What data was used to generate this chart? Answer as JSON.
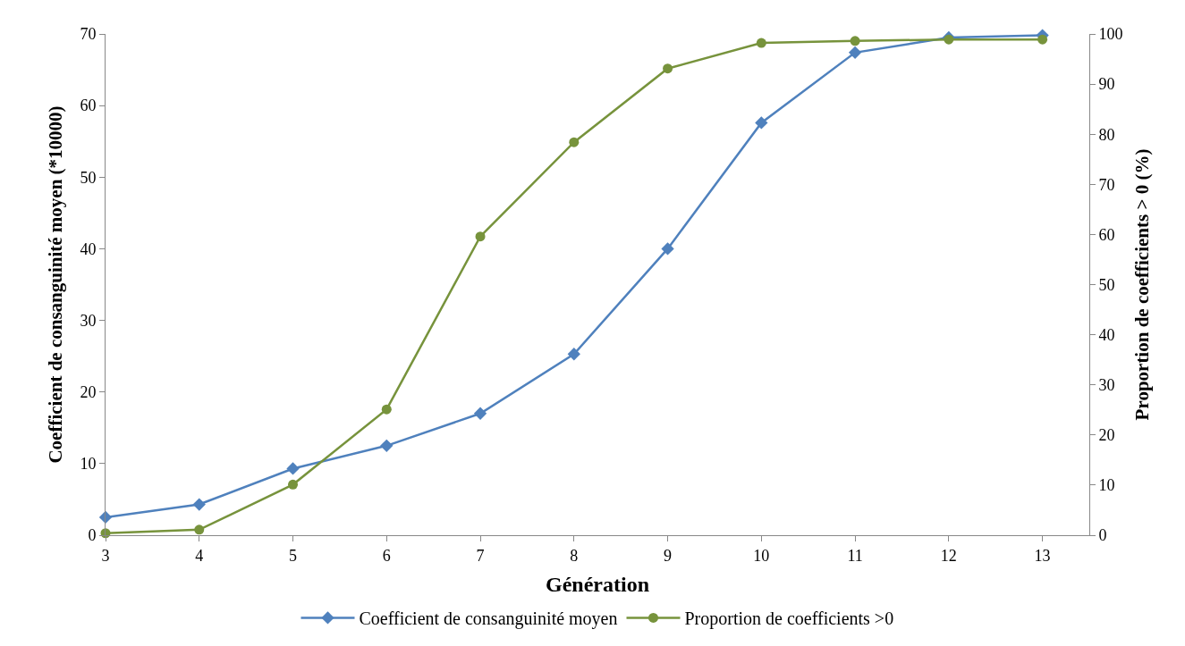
{
  "chart_data": {
    "type": "line",
    "xlabel": "Génération",
    "ylabel": "Coefficient de consanguinité moyen (*10000)",
    "y2label": "Proportion de coefficients > 0 (%)",
    "x": [
      3,
      4,
      5,
      6,
      7,
      8,
      9,
      10,
      11,
      12,
      13
    ],
    "xlim": [
      3,
      13.5
    ],
    "xticks": [
      3,
      4,
      5,
      6,
      7,
      8,
      9,
      10,
      11,
      12,
      13
    ],
    "ylim": [
      0,
      70
    ],
    "yticks": [
      0,
      10,
      20,
      30,
      40,
      50,
      60,
      70
    ],
    "y2lim": [
      0,
      100
    ],
    "y2ticks": [
      0,
      10,
      20,
      30,
      40,
      50,
      60,
      70,
      80,
      90,
      100
    ],
    "grid": false,
    "legend": "bottom",
    "series": [
      {
        "name": "Coefficient de consanguinité moyen",
        "color": "#4f81bd",
        "marker": "diamond",
        "values": [
          2.5,
          4.3,
          9.3,
          12.5,
          17.0,
          25.3,
          40.0,
          57.6,
          67.4,
          69.5,
          69.8
        ]
      },
      {
        "name": "Proportion de coefficients >0",
        "color": "#77933c",
        "marker": "circle",
        "axis": "y2",
        "values": [
          0.4,
          1.1,
          10.1,
          25.1,
          59.6,
          78.4,
          93.1,
          98.2,
          98.6,
          98.9,
          98.9
        ]
      }
    ]
  }
}
